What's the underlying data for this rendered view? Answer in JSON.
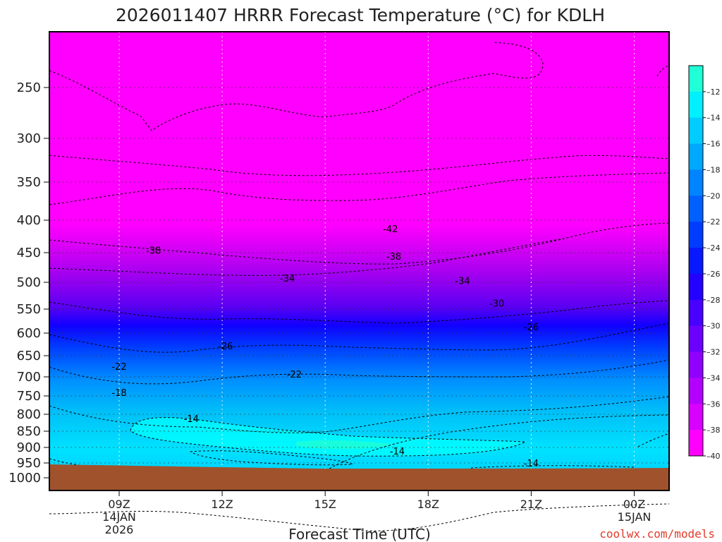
{
  "chart_data": {
    "type": "contour",
    "title": "2026011407 HRRR Forecast Temperature (°C) for KDLH",
    "xlabel": "Forecast Time (UTC)",
    "ylabel": "",
    "x_ticks": [
      {
        "label": "09Z",
        "sub": [
          "14JAN",
          "2026"
        ]
      },
      {
        "label": "12Z",
        "sub": []
      },
      {
        "label": "15Z",
        "sub": []
      },
      {
        "label": "18Z",
        "sub": []
      },
      {
        "label": "21Z",
        "sub": []
      },
      {
        "label": "00Z",
        "sub": [
          "15JAN"
        ]
      }
    ],
    "y_ticks": [
      "250",
      "300",
      "350",
      "400",
      "450",
      "500",
      "550",
      "600",
      "650",
      "700",
      "750",
      "800",
      "850",
      "900",
      "950",
      "1000"
    ],
    "colorbar_ticks": [
      "-12",
      "-14",
      "-16",
      "-18",
      "-20",
      "-22",
      "-24",
      "-26",
      "-28",
      "-30",
      "-32",
      "-34",
      "-36",
      "-38",
      "-40"
    ],
    "contour_labels": [
      {
        "text": "-42",
        "x": 16.9,
        "p": 413
      },
      {
        "text": "-38",
        "x": 10.0,
        "p": 446
      },
      {
        "text": "-38",
        "x": 17.0,
        "p": 456
      },
      {
        "text": "-34",
        "x": 13.9,
        "p": 493
      },
      {
        "text": "-34",
        "x": 19.0,
        "p": 497
      },
      {
        "text": "-30",
        "x": 20.0,
        "p": 539
      },
      {
        "text": "-26",
        "x": 12.1,
        "p": 628
      },
      {
        "text": "-26",
        "x": 21.0,
        "p": 587
      },
      {
        "text": "-22",
        "x": 9.0,
        "p": 675
      },
      {
        "text": "-22",
        "x": 14.1,
        "p": 693
      },
      {
        "text": "-18",
        "x": 9.0,
        "p": 741
      },
      {
        "text": "-14",
        "x": 11.1,
        "p": 813
      },
      {
        "text": "-14",
        "x": 17.1,
        "p": 911
      },
      {
        "text": "-14",
        "x": 21.0,
        "p": 950
      }
    ],
    "credit": "coolwx.com/models"
  }
}
